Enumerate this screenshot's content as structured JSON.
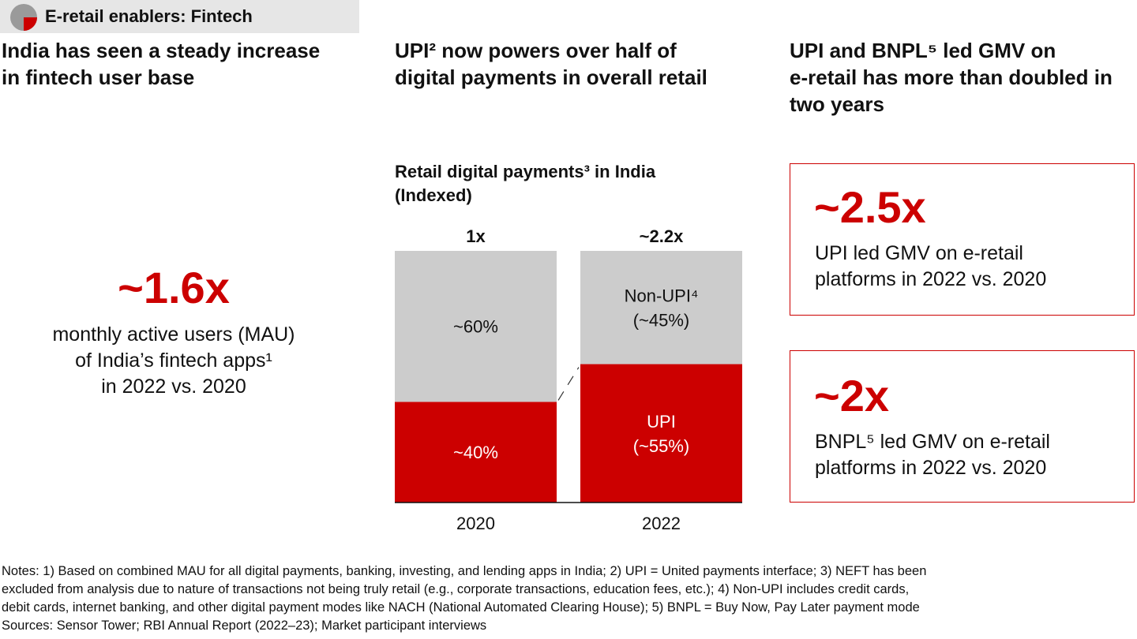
{
  "tag": {
    "label": "E-retail enablers: Fintech"
  },
  "columns": [
    {
      "heading_lines": [
        "India has seen a steady increase",
        "in fintech user base"
      ]
    },
    {
      "heading_lines": [
        "UPI² now powers over half of",
        "digital payments in overall retail"
      ]
    },
    {
      "heading_lines": [
        "UPI and BNPL⁵ led GMV on",
        "e-retail has more than doubled in",
        "two years"
      ]
    }
  ],
  "mau_stat": {
    "value": "~1.6x",
    "desc_lines": [
      "monthly active users (MAU)",
      "of India’s fintech apps¹",
      "in 2022 vs. 2020"
    ]
  },
  "chart_data": {
    "type": "bar",
    "stacked": true,
    "title_lines": [
      "Retail digital payments³ in India",
      "(Indexed)"
    ],
    "categories": [
      "2020",
      "2022"
    ],
    "totals": [
      1.0,
      2.2
    ],
    "total_labels": [
      "1x",
      "~2.2x"
    ],
    "series": [
      {
        "name": "UPI",
        "shares": [
          40,
          55
        ],
        "values": [
          0.4,
          1.21
        ],
        "labels": [
          "~40%",
          "UPI\n(~55%)"
        ],
        "color": "#cc0000"
      },
      {
        "name": "Non-UPI⁴",
        "shares": [
          60,
          45
        ],
        "values": [
          0.6,
          0.99
        ],
        "labels": [
          "~60%",
          "Non-UPI⁴\n(~45%)"
        ],
        "color": "#cccccc"
      }
    ],
    "axis_break": true,
    "grid": false,
    "legend": "none"
  },
  "stat_boxes": [
    {
      "value": "~2.5x",
      "desc_lines": [
        "UPI led GMV on e-retail",
        "platforms in 2022 vs. 2020"
      ]
    },
    {
      "value": "~2x",
      "desc_lines": [
        "BNPL⁵ led GMV on e-retail",
        "platforms in 2022 vs. 2020"
      ]
    }
  ],
  "notes": {
    "lines": [
      "Notes: 1) Based on combined MAU for all digital payments, banking, investing, and lending apps in India; 2) UPI = United payments interface; 3) NEFT has been",
      "excluded from analysis due to nature of transactions not being truly retail (e.g., corporate transactions, education fees, etc.); 4) Non-UPI includes credit cards,",
      "debit cards, internet banking, and other digital payment modes like NACH (National Automated Clearing House); 5) BNPL = Buy Now, Pay Later payment mode",
      "Sources: Sensor Tower; RBI Annual Report (2022–23); Market participant interviews"
    ]
  },
  "colors": {
    "accent": "#cc0000",
    "grey_bar": "#cccccc",
    "tag_bg": "#e6e6e6"
  }
}
